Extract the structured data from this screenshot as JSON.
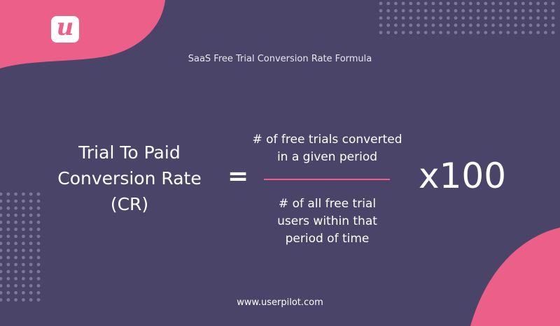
{
  "brand": {
    "logo_letter": "u",
    "accent_color": "#ec5f89",
    "background_color": "#4a4468"
  },
  "title": "SaaS Free Trial Conversion Rate Formula",
  "formula": {
    "lhs_lines": [
      "Trial To Paid",
      "Conversion Rate",
      "(CR)"
    ],
    "equals": "=",
    "numerator_lines": [
      "# of free trials converted",
      "in a given period"
    ],
    "denominator_lines": [
      "# of all free trial",
      "users within that",
      "period of time"
    ],
    "multiplier": "x100"
  },
  "footer_url": "www.userpilot.com"
}
